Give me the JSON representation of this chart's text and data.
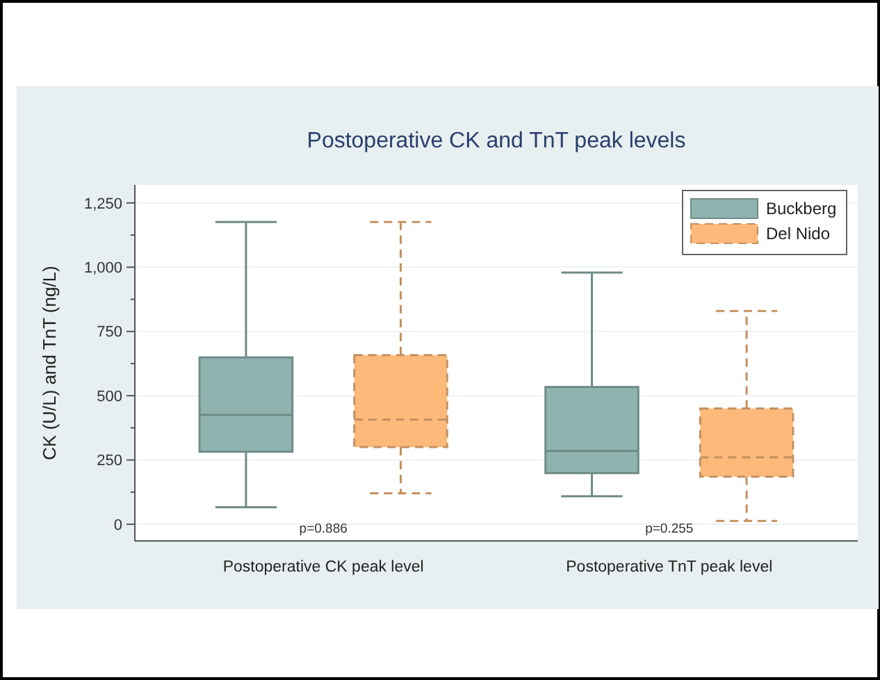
{
  "chart_data": {
    "type": "box",
    "title": "Postoperative CK and TnT peak levels",
    "ylabel": "CK (U/L) and TnT (ng/L)",
    "categories": [
      "Postoperative CK peak level",
      "Postoperative TnT peak level"
    ],
    "series": [
      {
        "name": "Buckberg",
        "color": "#8fb3ae",
        "line_style": "solid",
        "boxes": [
          {
            "low": 66,
            "q1": 282,
            "median": 425,
            "q3": 649,
            "high": 1176
          },
          {
            "low": 109,
            "q1": 199,
            "median": 285,
            "q3": 534,
            "high": 979
          }
        ]
      },
      {
        "name": "Del Nido",
        "color": "#fdb97a",
        "line_style": "dashed",
        "boxes": [
          {
            "low": 120,
            "q1": 300,
            "median": 407,
            "q3": 658,
            "high": 1176
          },
          {
            "low": 13,
            "q1": 185,
            "median": 260,
            "q3": 450,
            "high": 830
          }
        ]
      }
    ],
    "ylim": [
      -65,
      1320
    ],
    "yticks": [
      0,
      {
        "value": 125,
        "label": null
      },
      {
        "value": 250,
        "label": "250"
      },
      {
        "value": 375,
        "label": null
      },
      500,
      {
        "value": 625,
        "label": null
      },
      750,
      {
        "value": 875,
        "label": null
      },
      {
        "value": 1000,
        "label": "1,000"
      },
      {
        "value": 1125,
        "label": null
      },
      {
        "value": 1250,
        "label": "1,250"
      }
    ],
    "grid": "y",
    "legend": "top right",
    "annotations": [
      "p=0.886",
      "p=0.255"
    ]
  }
}
